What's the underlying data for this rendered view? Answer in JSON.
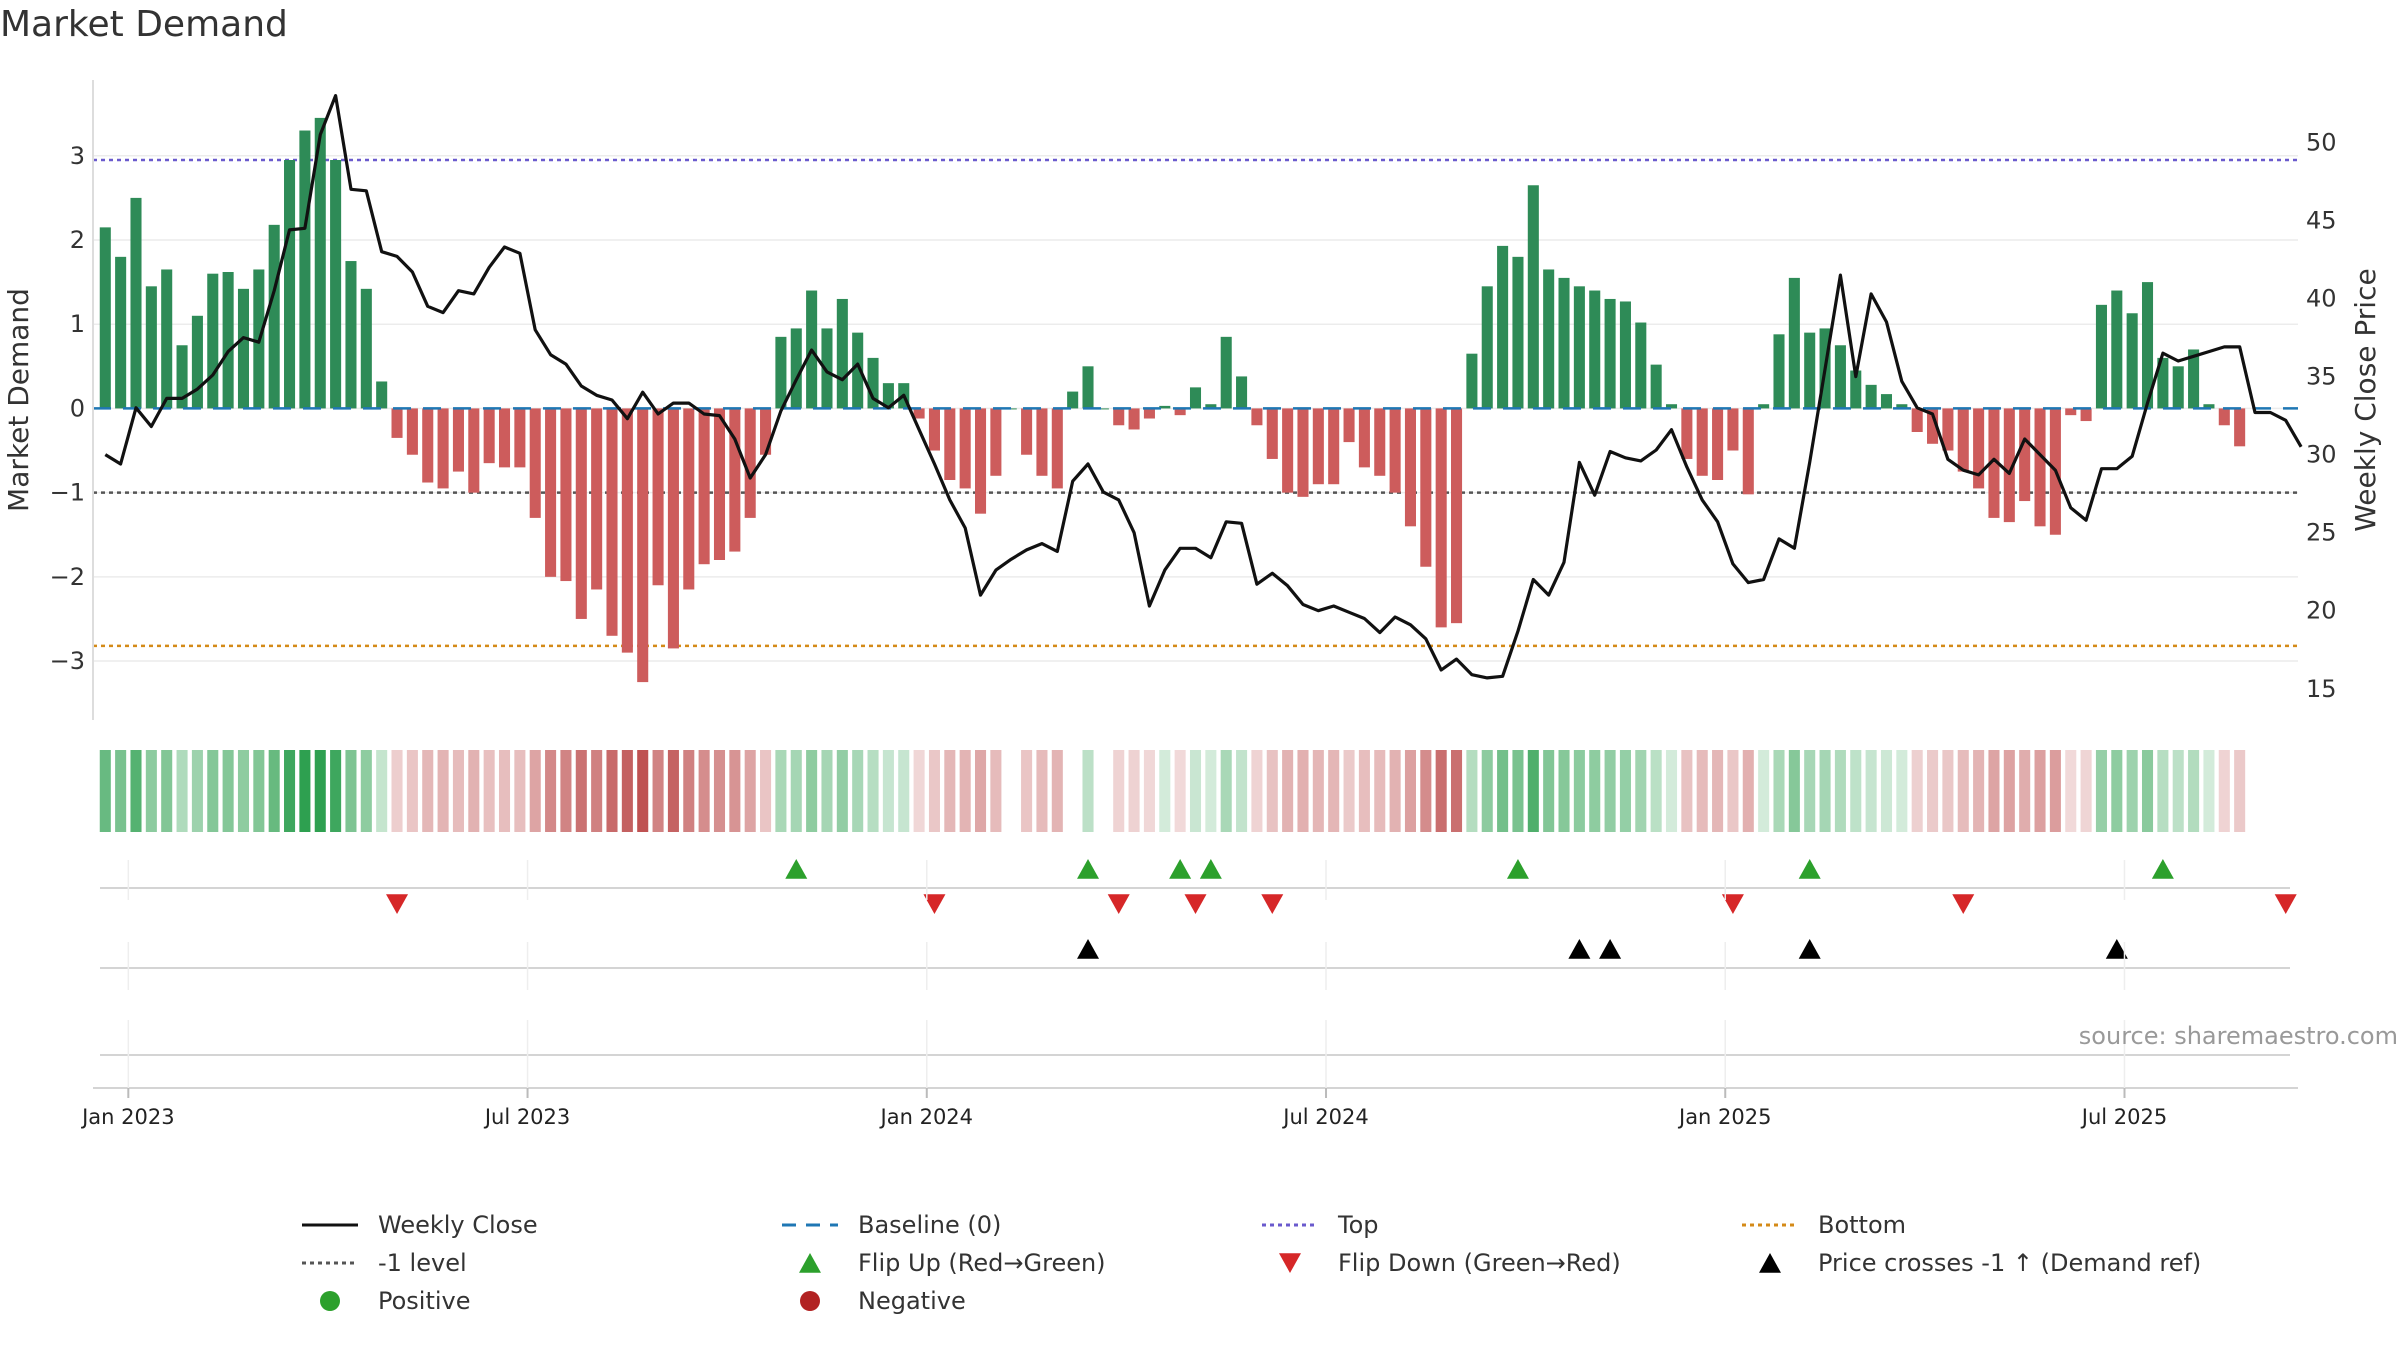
{
  "title": "Market Demand",
  "source": "source: sharemaestro.com",
  "colors": {
    "positive_bar": "#2e8b57",
    "negative_bar": "#cd5c5c",
    "weekly_close": "#111111",
    "baseline": "#1f77b4",
    "top": "#6a5acd",
    "bottom": "#d48a17",
    "minus1": "#555555",
    "flip_up": "#2ca02c",
    "flip_down": "#d62728",
    "cross": "#000000",
    "positive_dot": "#2ca02c",
    "negative_dot": "#b22222"
  },
  "chart_data": {
    "type": "bar",
    "title": "Market Demand",
    "ylabel": "Market Demand",
    "y2label": "Weekly Close Price",
    "ylim": [
      -3.7,
      3.9
    ],
    "y2lim": [
      13,
      54
    ],
    "yticks": [
      3,
      2,
      1,
      0,
      -1,
      -2,
      -3
    ],
    "yticklabels": [
      "3",
      "2",
      "1",
      "0",
      "−1",
      "−2",
      "−3"
    ],
    "y2ticks": [
      50,
      45,
      40,
      35,
      30,
      25,
      20,
      15
    ],
    "xticks": [
      1.5,
      27.5,
      53.5,
      79.5,
      105.5,
      131.5
    ],
    "xticklabels": [
      "Jan 2023",
      "Jul 2023",
      "Jan 2024",
      "Jul 2024",
      "Jan 2025",
      "Jul 2025"
    ],
    "reference_lines": {
      "baseline": 0,
      "top": 2.95,
      "bottom": -2.82,
      "minus1": -1
    },
    "weeks": 143,
    "demand": [
      2.15,
      1.8,
      2.5,
      1.45,
      1.65,
      0.75,
      1.1,
      1.6,
      1.62,
      1.42,
      1.65,
      2.18,
      2.95,
      3.3,
      3.45,
      2.95,
      1.75,
      1.42,
      0.32,
      -0.35,
      -0.55,
      -0.88,
      -0.95,
      -0.75,
      -1.0,
      -0.65,
      -0.7,
      -0.7,
      -1.3,
      -2.0,
      -2.05,
      -2.5,
      -2.15,
      -2.7,
      -2.9,
      -3.25,
      -2.1,
      -2.85,
      -2.15,
      -1.85,
      -1.8,
      -1.7,
      -1.3,
      -0.55,
      0.85,
      0.95,
      1.4,
      0.95,
      1.3,
      0.9,
      0.6,
      0.3,
      0.3,
      -0.12,
      -0.5,
      -0.85,
      -0.95,
      -1.25,
      -0.8,
      0.0,
      -0.55,
      -0.8,
      -0.95,
      0.2,
      0.5,
      0.0,
      -0.2,
      -0.25,
      -0.12,
      0.03,
      -0.08,
      0.25,
      0.05,
      0.85,
      0.38,
      -0.2,
      -0.6,
      -1.0,
      -1.05,
      -0.9,
      -0.9,
      -0.4,
      -0.7,
      -0.8,
      -1.0,
      -1.4,
      -1.88,
      -2.6,
      -2.55,
      0.65,
      1.45,
      1.93,
      1.8,
      2.65,
      1.65,
      1.55,
      1.45,
      1.4,
      1.3,
      1.27,
      1.02,
      0.52,
      0.05,
      -0.6,
      -0.8,
      -0.85,
      -0.5,
      -1.02,
      0.05,
      0.88,
      1.55,
      0.9,
      0.95,
      0.75,
      0.45,
      0.28,
      0.17,
      0.05,
      -0.28,
      -0.42,
      -0.5,
      -0.75,
      -0.95,
      -1.3,
      -1.35,
      -1.1,
      -1.4,
      -1.5,
      -0.08,
      -0.15,
      1.23,
      1.4,
      1.13,
      1.5,
      0.6,
      0.5,
      0.7,
      0.05,
      -0.2,
      -0.45
    ],
    "close": [
      30.0,
      29.4,
      33.0,
      31.8,
      33.6,
      33.6,
      34.2,
      35.1,
      36.6,
      37.5,
      37.2,
      40.5,
      44.4,
      44.5,
      50.5,
      53.0,
      47.0,
      46.9,
      43.0,
      42.7,
      41.7,
      39.5,
      39.1,
      40.5,
      40.3,
      42.0,
      43.3,
      42.9,
      38.0,
      36.4,
      35.8,
      34.4,
      33.8,
      33.5,
      32.3,
      34.0,
      32.6,
      33.3,
      33.3,
      32.6,
      32.5,
      31.0,
      28.5,
      30.0,
      32.8,
      34.8,
      36.7,
      35.3,
      34.8,
      35.8,
      33.6,
      33.0,
      33.8,
      31.6,
      29.4,
      27.1,
      25.3,
      21.0,
      22.6,
      23.3,
      23.9,
      24.3,
      23.8,
      28.3,
      29.4,
      27.6,
      27.1,
      25.0,
      20.3,
      22.6,
      24.0,
      24.0,
      23.4,
      25.7,
      25.6,
      21.7,
      22.4,
      21.6,
      20.4,
      20.0,
      20.3,
      19.9,
      19.5,
      18.6,
      19.6,
      19.1,
      18.2,
      16.2,
      16.9,
      15.9,
      15.7,
      15.8,
      18.7,
      22.0,
      21.0,
      23.1,
      29.5,
      27.4,
      30.2,
      29.8,
      29.6,
      30.3,
      31.6,
      29.2,
      27.1,
      25.7,
      23.0,
      21.8,
      22.0,
      24.6,
      24.0,
      29.5,
      35.5,
      41.5,
      35.0,
      40.3,
      38.5,
      34.7,
      33.0,
      32.6,
      29.7,
      29.0,
      28.7,
      29.7,
      28.8,
      31.0,
      30.0,
      29.0,
      26.6,
      25.8,
      29.1,
      29.1,
      29.9,
      33.3,
      36.5,
      36.0,
      36.3,
      36.6,
      36.9,
      36.9,
      32.7,
      32.7,
      32.2,
      30.5
    ],
    "flip_up_weeks": [
      45,
      64,
      70,
      72,
      92,
      111,
      134
    ],
    "flip_down_weeks": [
      19,
      54,
      66,
      71,
      76,
      106,
      121,
      142
    ],
    "price_cross_weeks": [
      64,
      96,
      98,
      111,
      131
    ]
  },
  "xaxis": {
    "ticks": [
      "Jan 2023",
      "Jul 2023",
      "Jan 2024",
      "Jul 2024",
      "Jan 2025",
      "Jul 2025"
    ]
  },
  "legend": [
    {
      "key": "weekly_close",
      "label": "Weekly Close",
      "type": "line"
    },
    {
      "key": "baseline",
      "label": "Baseline (0)",
      "type": "dashed"
    },
    {
      "key": "top",
      "label": "Top",
      "type": "dotted"
    },
    {
      "key": "bottom",
      "label": "Bottom",
      "type": "dotted"
    },
    {
      "key": "minus1",
      "label": "-1 level",
      "type": "dotted"
    },
    {
      "key": "flip_up",
      "label": "Flip Up (Red→Green)",
      "type": "tri-up"
    },
    {
      "key": "flip_down",
      "label": "Flip Down (Green→Red)",
      "type": "tri-down"
    },
    {
      "key": "cross",
      "label": "Price crosses -1 ↑ (Demand ref)",
      "type": "tri-up"
    },
    {
      "key": "positive_dot",
      "label": "Positive",
      "type": "dot"
    },
    {
      "key": "negative_dot",
      "label": "Negative",
      "type": "dot"
    }
  ]
}
